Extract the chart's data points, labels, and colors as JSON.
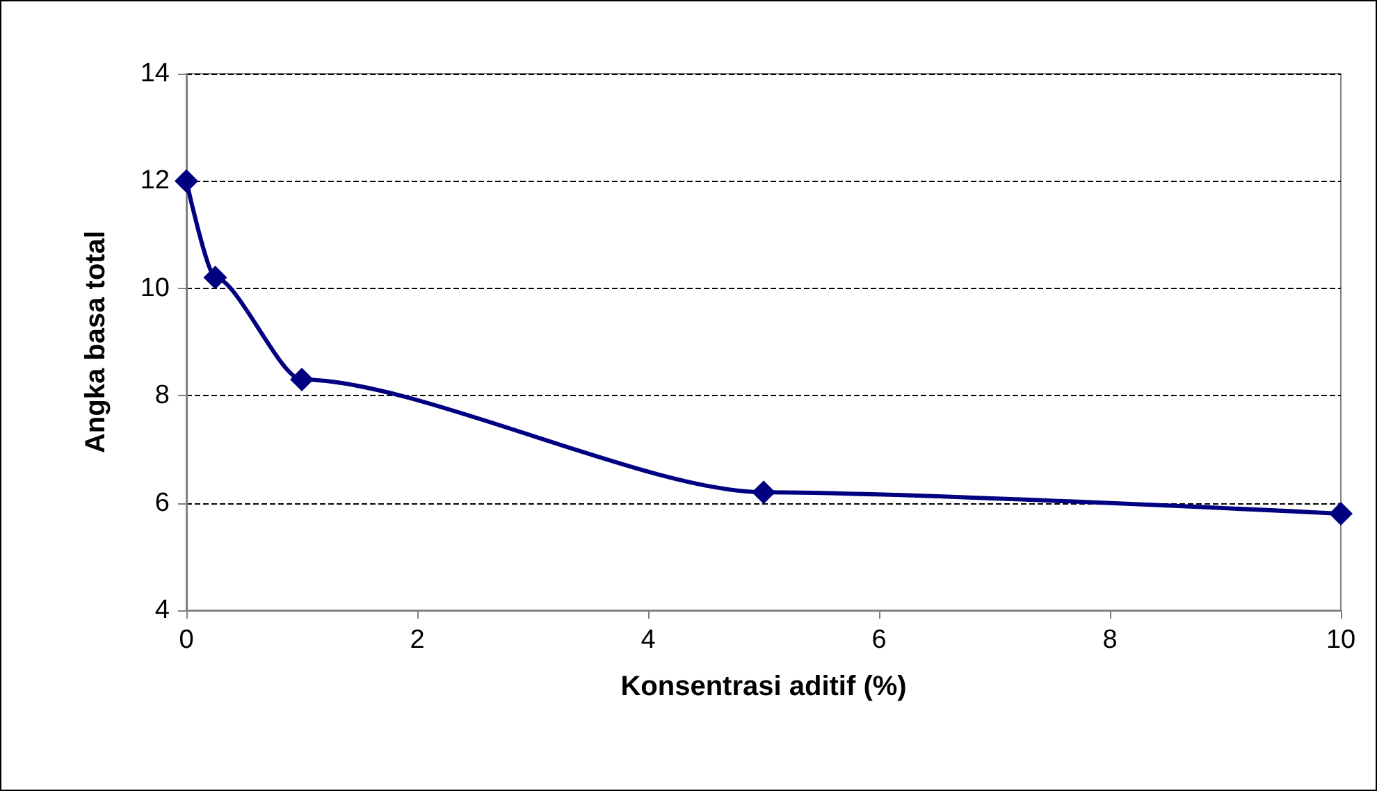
{
  "chart_data": {
    "type": "line",
    "xlabel": "Konsentrasi aditif (%)",
    "ylabel": "Angka basa total",
    "x": [
      0,
      0.25,
      1,
      5,
      10
    ],
    "series": [
      {
        "color": "#000080",
        "values": [
          12,
          10.2,
          8.3,
          6.2,
          5.8
        ]
      }
    ],
    "xlim": [
      0,
      10
    ],
    "xticks": [
      0,
      2,
      4,
      6,
      8,
      10
    ],
    "ylim": [
      4,
      14
    ],
    "yticks": [
      4,
      6,
      8,
      10,
      12,
      14
    ],
    "grid": "y",
    "marker": "diamond",
    "line_style": "solid"
  }
}
